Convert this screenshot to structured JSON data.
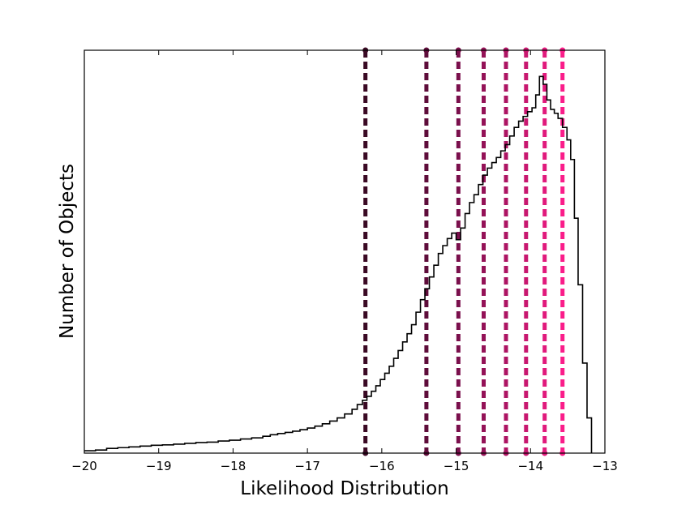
{
  "chart_data": {
    "type": "histogram",
    "xlabel": "Likelihood Distribution",
    "ylabel": "Number of Objects",
    "xlim": [
      -20,
      -13
    ],
    "ylim": [
      0,
      1
    ],
    "x_ticks": [
      -20,
      -19,
      -18,
      -17,
      -16,
      -15,
      -14,
      -13
    ],
    "x_tick_labels": [
      "−20",
      "−19",
      "−18",
      "−17",
      "−16",
      "−15",
      "−14",
      "−13"
    ],
    "y_tick_labels_shown": false,
    "grid": false,
    "histogram": {
      "color": "#000000",
      "bins": [
        [
          -20.0,
          0.006
        ],
        [
          -19.85,
          0.008
        ],
        [
          -19.7,
          0.012
        ],
        [
          -19.55,
          0.014
        ],
        [
          -19.4,
          0.016
        ],
        [
          -19.25,
          0.018
        ],
        [
          -19.1,
          0.02
        ],
        [
          -18.95,
          0.021
        ],
        [
          -18.8,
          0.023
        ],
        [
          -18.65,
          0.025
        ],
        [
          -18.5,
          0.027
        ],
        [
          -18.35,
          0.028
        ],
        [
          -18.2,
          0.031
        ],
        [
          -18.05,
          0.033
        ],
        [
          -17.9,
          0.036
        ],
        [
          -17.75,
          0.039
        ],
        [
          -17.6,
          0.043
        ],
        [
          -17.5,
          0.047
        ],
        [
          -17.4,
          0.05
        ],
        [
          -17.3,
          0.053
        ],
        [
          -17.2,
          0.056
        ],
        [
          -17.1,
          0.06
        ],
        [
          -17.0,
          0.064
        ],
        [
          -16.9,
          0.069
        ],
        [
          -16.8,
          0.075
        ],
        [
          -16.7,
          0.082
        ],
        [
          -16.6,
          0.09
        ],
        [
          -16.5,
          0.1
        ],
        [
          -16.4,
          0.112
        ],
        [
          -16.33,
          0.124
        ],
        [
          -16.26,
          0.135
        ],
        [
          -16.2,
          0.145
        ],
        [
          -16.14,
          0.158
        ],
        [
          -16.08,
          0.172
        ],
        [
          -16.02,
          0.188
        ],
        [
          -15.96,
          0.204
        ],
        [
          -15.9,
          0.222
        ],
        [
          -15.84,
          0.242
        ],
        [
          -15.78,
          0.262
        ],
        [
          -15.72,
          0.284
        ],
        [
          -15.66,
          0.305
        ],
        [
          -15.6,
          0.328
        ],
        [
          -15.54,
          0.36
        ],
        [
          -15.48,
          0.392
        ],
        [
          -15.42,
          0.42
        ],
        [
          -15.36,
          0.45
        ],
        [
          -15.3,
          0.48
        ],
        [
          -15.24,
          0.51
        ],
        [
          -15.18,
          0.53
        ],
        [
          -15.12,
          0.548
        ],
        [
          -15.06,
          0.562
        ],
        [
          -15.0,
          0.545
        ],
        [
          -14.94,
          0.575
        ],
        [
          -14.88,
          0.612
        ],
        [
          -14.82,
          0.64
        ],
        [
          -14.76,
          0.66
        ],
        [
          -14.7,
          0.686
        ],
        [
          -14.64,
          0.71
        ],
        [
          -14.58,
          0.728
        ],
        [
          -14.52,
          0.742
        ],
        [
          -14.46,
          0.755
        ],
        [
          -14.4,
          0.772
        ],
        [
          -14.34,
          0.788
        ],
        [
          -14.28,
          0.81
        ],
        [
          -14.22,
          0.832
        ],
        [
          -14.16,
          0.848
        ],
        [
          -14.1,
          0.86
        ],
        [
          -14.04,
          0.872
        ],
        [
          -13.98,
          0.882
        ],
        [
          -13.93,
          0.915
        ],
        [
          -13.88,
          0.962
        ],
        [
          -13.83,
          0.942
        ],
        [
          -13.78,
          0.902
        ],
        [
          -13.73,
          0.878
        ],
        [
          -13.68,
          0.868
        ],
        [
          -13.63,
          0.855
        ],
        [
          -13.57,
          0.832
        ],
        [
          -13.51,
          0.8
        ],
        [
          -13.46,
          0.75
        ],
        [
          -13.41,
          0.6
        ],
        [
          -13.36,
          0.43
        ],
        [
          -13.3,
          0.23
        ],
        [
          -13.24,
          0.09
        ],
        [
          -13.18,
          0.0
        ]
      ]
    },
    "vertical_lines": [
      {
        "x": -16.22,
        "color": "#3a0a24"
      },
      {
        "x": -15.4,
        "color": "#5e0c3a"
      },
      {
        "x": -14.97,
        "color": "#7a0f4c"
      },
      {
        "x": -14.63,
        "color": "#941257"
      },
      {
        "x": -14.33,
        "color": "#ad1463"
      },
      {
        "x": -14.06,
        "color": "#c8176f"
      },
      {
        "x": -13.81,
        "color": "#e11a7c"
      },
      {
        "x": -13.57,
        "color": "#fa1d8a"
      }
    ]
  }
}
